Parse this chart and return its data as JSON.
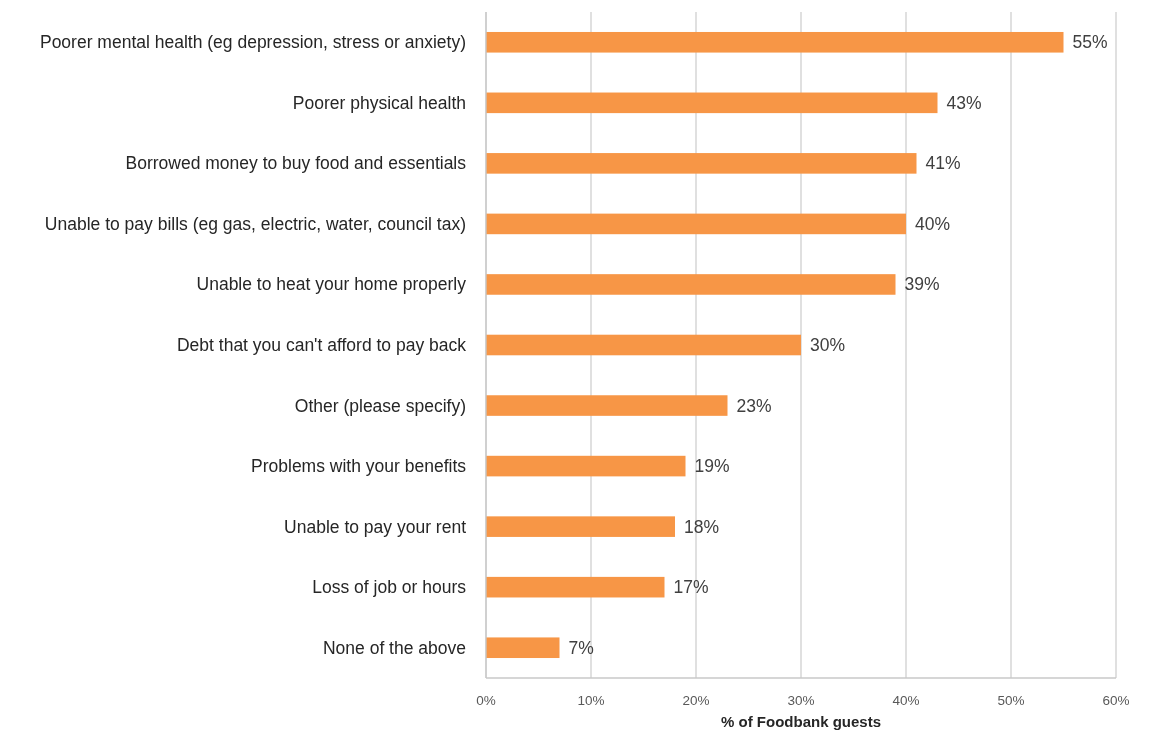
{
  "chart_data": {
    "type": "bar",
    "orientation": "horizontal",
    "categories": [
      "Poorer mental health (eg depression, stress or anxiety)",
      "Poorer physical health",
      "Borrowed money to buy food and essentials",
      "Unable to pay bills (eg gas, electric, water, council tax)",
      "Unable to heat your home properly",
      "Debt that you can't afford to pay back",
      "Other (please specify)",
      "Problems with your benefits",
      "Unable to pay your rent",
      "Loss of job or hours",
      "None of the above"
    ],
    "values": [
      55,
      43,
      41,
      40,
      39,
      30,
      23,
      19,
      18,
      17,
      7
    ],
    "value_labels": [
      "55%",
      "43%",
      "41%",
      "40%",
      "39%",
      "30%",
      "23%",
      "19%",
      "18%",
      "17%",
      "7%"
    ],
    "color": "#f79646",
    "xlabel": "% of Foodbank guests",
    "xlim": [
      0,
      60
    ],
    "xticks": [
      {
        "value": 0,
        "label": "0%"
      },
      {
        "value": 10,
        "label": "10%"
      },
      {
        "value": 20,
        "label": "20%"
      },
      {
        "value": 30,
        "label": "30%"
      },
      {
        "value": 40,
        "label": "40%"
      },
      {
        "value": 50,
        "label": "50%"
      },
      {
        "value": 60,
        "label": "60%"
      }
    ],
    "grid": "x"
  }
}
